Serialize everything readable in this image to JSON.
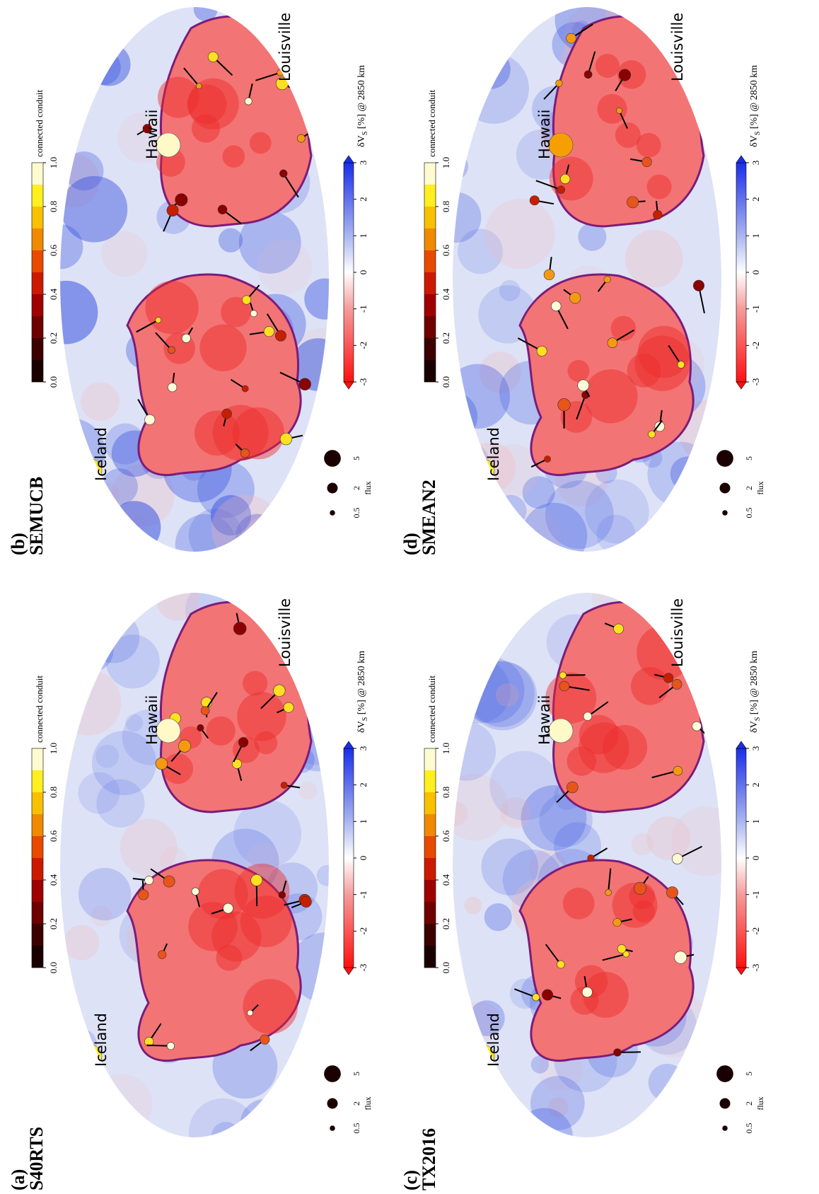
{
  "panels": [
    {
      "label": "(a)",
      "model": "S40RTS",
      "places": [
        "Iceland",
        "Hawaii",
        "Louisville"
      ],
      "conduit_colorbar": {
        "title": "connected conduit",
        "ticks": [
          {
            "value": 0,
            "label": "0.0"
          },
          {
            "value": 0.2,
            "label": "0.2"
          },
          {
            "value": 0.4,
            "label": "0.4"
          },
          {
            "value": 0.6,
            "label": "0.6"
          },
          {
            "value": 0.8,
            "label": "0.8"
          },
          {
            "value": 1,
            "label": "1.0"
          }
        ]
      },
      "dvs_colorbar": {
        "title": "δV",
        "title_sub": "S",
        "title_rest": " [%] @ 2850 km",
        "ticks": [
          -3,
          -2,
          -1,
          0,
          1,
          2,
          3
        ]
      },
      "flux_legend": {
        "title": "flux",
        "sizes": [
          0.5,
          2,
          5
        ]
      }
    },
    {
      "label": "(b)",
      "model": "SEMUCB",
      "places": [
        "Iceland",
        "Hawaii",
        "Louisville"
      ],
      "conduit_colorbar": {
        "title": "connected conduit",
        "ticks": [
          {
            "value": 0,
            "label": "0.0"
          },
          {
            "value": 0.2,
            "label": "0.2"
          },
          {
            "value": 0.4,
            "label": "0.4"
          },
          {
            "value": 0.6,
            "label": "0.6"
          },
          {
            "value": 0.8,
            "label": "0.8"
          },
          {
            "value": 1,
            "label": "1.0"
          }
        ]
      },
      "dvs_colorbar": {
        "title": "δV",
        "title_sub": "S",
        "title_rest": " [%] @ 2850 km",
        "ticks": [
          -3,
          -2,
          -1,
          0,
          1,
          2,
          3
        ]
      },
      "flux_legend": {
        "title": "flux",
        "sizes": [
          0.5,
          2,
          5
        ]
      }
    },
    {
      "label": "(c)",
      "model": "TX2016",
      "places": [
        "Iceland",
        "Hawaii",
        "Louisville"
      ],
      "conduit_colorbar": {
        "title": "connected conduit",
        "ticks": [
          {
            "value": 0,
            "label": "0.0"
          },
          {
            "value": 0.2,
            "label": "0.2"
          },
          {
            "value": 0.4,
            "label": "0.4"
          },
          {
            "value": 0.6,
            "label": "0.6"
          },
          {
            "value": 0.8,
            "label": "0.8"
          },
          {
            "value": 1,
            "label": "1.0"
          }
        ]
      },
      "dvs_colorbar": {
        "title": "δV",
        "title_sub": "S",
        "title_rest": " [%] @ 2850 km",
        "ticks": [
          -3,
          -2,
          -1,
          0,
          1,
          2,
          3
        ]
      },
      "flux_legend": {
        "title": "flux",
        "sizes": [
          0.5,
          2,
          5
        ]
      }
    },
    {
      "label": "(d)",
      "model": "SMEAN2",
      "places": [
        "Iceland",
        "Hawaii",
        "Louisville"
      ],
      "conduit_colorbar": {
        "title": "connected conduit",
        "ticks": [
          {
            "value": 0,
            "label": "0.0"
          },
          {
            "value": 0.2,
            "label": "0.2"
          },
          {
            "value": 0.4,
            "label": "0.4"
          },
          {
            "value": 0.6,
            "label": "0.6"
          },
          {
            "value": 0.8,
            "label": "0.8"
          },
          {
            "value": 1,
            "label": "1.0"
          }
        ]
      },
      "dvs_colorbar": {
        "title": "δV",
        "title_sub": "S",
        "title_rest": " [%] @ 2850 km",
        "ticks": [
          -3,
          -2,
          -1,
          0,
          1,
          2,
          3
        ]
      },
      "flux_legend": {
        "title": "flux",
        "sizes": [
          0.5,
          2,
          5
        ]
      }
    }
  ]
}
